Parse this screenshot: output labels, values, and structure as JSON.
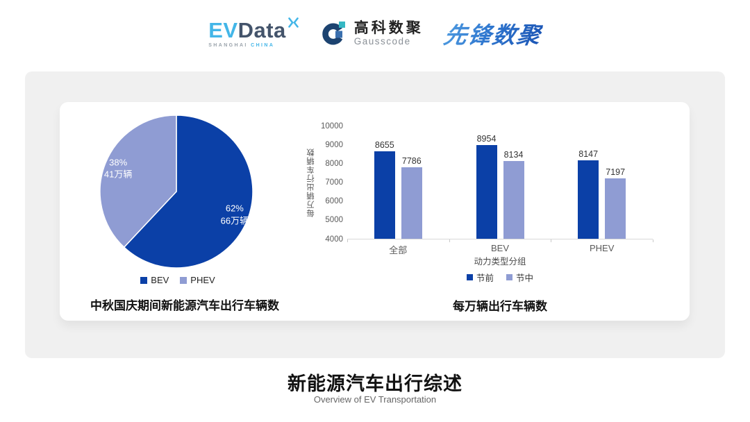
{
  "header": {
    "evdata_logo": {
      "ev": "EV",
      "data": "Data",
      "sub_left": "SHANGHAI",
      "sub_right": "CHINA"
    },
    "gausscode_logo": {
      "cn": "高科数聚",
      "en": "Gausscode"
    },
    "pioneer_logo": "先锋数聚"
  },
  "chart_data": [
    {
      "type": "pie",
      "title": "中秋国庆期间新能源汽车出行车辆数",
      "slices": [
        {
          "label": "BEV",
          "percent": 62,
          "amount": "66万辆",
          "color": "#0b40a7"
        },
        {
          "label": "PHEV",
          "percent": 38,
          "amount": "41万辆",
          "color": "#8f9cd3"
        }
      ],
      "legend_position": "bottom",
      "label_color": "#ffffff"
    },
    {
      "type": "bar",
      "title": "每万辆出行车辆数",
      "xlabel": "动力类型分组",
      "ylabel": "每万辆出行车辆数",
      "categories": [
        "全部",
        "BEV",
        "PHEV"
      ],
      "series": [
        {
          "name": "节前",
          "color": "#0b40a7",
          "values": [
            8655,
            8954,
            8147
          ]
        },
        {
          "name": "节中",
          "color": "#8f9cd3",
          "values": [
            7786,
            8134,
            7197
          ]
        }
      ],
      "ylim": [
        4000,
        10000
      ],
      "ytick_step": 1000,
      "grid": false,
      "legend_position": "bottom"
    }
  ],
  "footer": {
    "title": "新能源汽车出行综述",
    "subtitle": "Overview of EV Transportation"
  },
  "colors": {
    "panel": "#f0f0f0",
    "card": "#ffffff",
    "axis_text": "#595959",
    "baseline": "#d9d9d9",
    "value_label": "#333333"
  }
}
